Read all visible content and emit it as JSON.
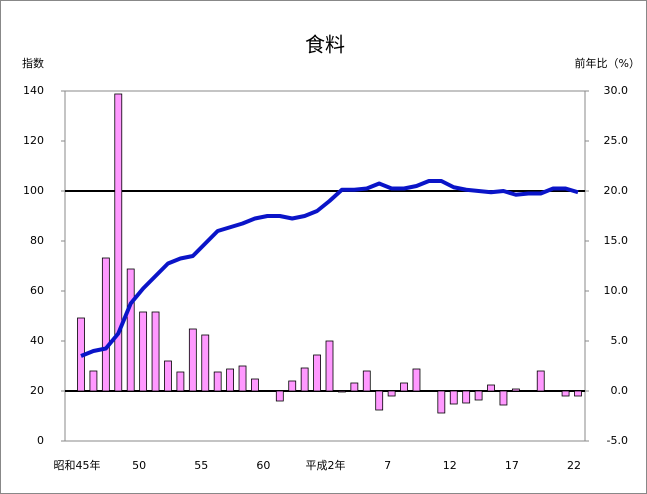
{
  "chart_data": {
    "type": "bar-line",
    "title": "食料",
    "y_label": "指数",
    "y2_label": "前年比（%）",
    "categories": [
      "昭和45年",
      null,
      null,
      null,
      null,
      "50",
      null,
      null,
      null,
      null,
      "55",
      null,
      null,
      null,
      null,
      "60",
      null,
      null,
      null,
      null,
      "平成2年",
      null,
      null,
      null,
      null,
      "7",
      null,
      null,
      null,
      null,
      "12",
      null,
      null,
      null,
      null,
      "17",
      null,
      null,
      null,
      null,
      "22"
    ],
    "series": [
      {
        "name": "前年比",
        "type": "bar",
        "axis": "y2",
        "color": "#ff99ff",
        "values": [
          7.3,
          2.0,
          13.3,
          29.7,
          12.2,
          7.9,
          7.9,
          3.0,
          1.9,
          6.2,
          5.6,
          1.9,
          2.2,
          2.5,
          1.2,
          0.0,
          -1.0,
          1.0,
          2.3,
          3.6,
          5.0,
          -0.1,
          0.8,
          2.0,
          -1.9,
          -0.5,
          0.8,
          2.2,
          0.0,
          -2.2,
          -1.3,
          -1.2,
          -0.9,
          0.6,
          -1.4,
          0.2,
          0.0,
          2.0,
          0.0,
          -0.5,
          -0.5
        ]
      },
      {
        "name": "指数",
        "type": "line",
        "axis": "y",
        "color": "#0a14c8",
        "values": [
          34,
          36,
          37,
          43,
          55,
          61,
          66,
          71,
          73,
          74,
          79,
          84,
          85.5,
          87,
          89,
          90,
          90,
          89,
          90,
          92,
          96,
          100.5,
          100.5,
          101,
          103,
          101,
          101,
          102,
          104,
          104,
          101.5,
          100.5,
          100,
          99.5,
          100,
          98.5,
          99,
          99,
          101,
          101,
          99.5
        ]
      }
    ],
    "ylim": [
      0,
      140
    ],
    "yticks": [
      0,
      20,
      40,
      60,
      80,
      100,
      120,
      140
    ],
    "y2lim": [
      -5,
      30
    ],
    "y2ticks": [
      {
        "value": -5,
        "label": "-5.0"
      },
      {
        "value": 0,
        "label": "0.0"
      },
      {
        "value": 5,
        "label": "5.0"
      },
      {
        "value": 10,
        "label": "10.0"
      },
      {
        "value": 15,
        "label": "15.0"
      },
      {
        "value": 20,
        "label": "20.0"
      },
      {
        "value": 25,
        "label": "25.0"
      },
      {
        "value": 30,
        "label": "30.0"
      }
    ],
    "reference_y": 100
  }
}
